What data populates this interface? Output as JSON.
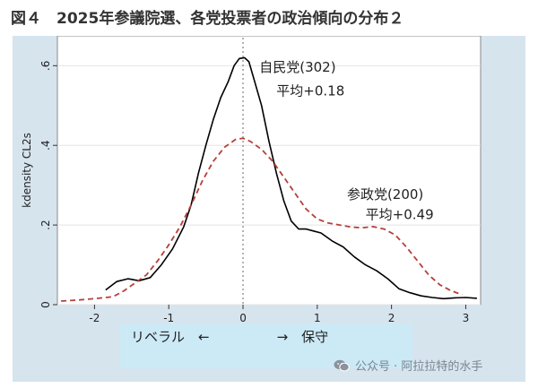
{
  "figure": {
    "title": "図４　2025年参議院選、各党投票者の政治傾向の分布２",
    "watermark": "公众号 · 阿拉拉特的水手",
    "watermark_icon": "wechat-icon",
    "axis_band": "リベラル　←　　　　　→　保守",
    "band_color": "#cce9f6",
    "panel_color": "#d6e4ee"
  },
  "chart_data": {
    "type": "line",
    "ylabel": "kdensity CL2s",
    "xlim": [
      -2.5,
      3.2
    ],
    "ylim": [
      0,
      0.63
    ],
    "xticks": [
      -2,
      -1,
      0,
      1,
      2,
      3
    ],
    "xtick_labels": [
      "-2",
      "-1",
      "0",
      "1",
      "2",
      "3"
    ],
    "yticks": [
      0,
      0.2,
      0.4,
      0.6
    ],
    "ytick_labels": [
      "0",
      ".2",
      ".4",
      ".6"
    ],
    "vline_x": 0,
    "series": [
      {
        "name": "自民党",
        "color": "#000000",
        "style": "solid",
        "points": [
          [
            -1.85,
            0.037
          ],
          [
            -1.7,
            0.058
          ],
          [
            -1.55,
            0.065
          ],
          [
            -1.4,
            0.06
          ],
          [
            -1.25,
            0.068
          ],
          [
            -1.1,
            0.1
          ],
          [
            -0.95,
            0.14
          ],
          [
            -0.8,
            0.195
          ],
          [
            -0.7,
            0.25
          ],
          [
            -0.6,
            0.33
          ],
          [
            -0.5,
            0.4
          ],
          [
            -0.4,
            0.465
          ],
          [
            -0.3,
            0.52
          ],
          [
            -0.2,
            0.56
          ],
          [
            -0.12,
            0.6
          ],
          [
            -0.05,
            0.618
          ],
          [
            0.02,
            0.62
          ],
          [
            0.08,
            0.61
          ],
          [
            0.15,
            0.565
          ],
          [
            0.25,
            0.5
          ],
          [
            0.35,
            0.41
          ],
          [
            0.45,
            0.33
          ],
          [
            0.55,
            0.26
          ],
          [
            0.65,
            0.21
          ],
          [
            0.75,
            0.19
          ],
          [
            0.85,
            0.19
          ],
          [
            0.95,
            0.185
          ],
          [
            1.05,
            0.18
          ],
          [
            1.2,
            0.16
          ],
          [
            1.35,
            0.145
          ],
          [
            1.5,
            0.12
          ],
          [
            1.65,
            0.1
          ],
          [
            1.8,
            0.085
          ],
          [
            1.95,
            0.065
          ],
          [
            2.1,
            0.04
          ],
          [
            2.25,
            0.03
          ],
          [
            2.4,
            0.022
          ],
          [
            2.55,
            0.018
          ],
          [
            2.7,
            0.015
          ],
          [
            2.85,
            0.017
          ],
          [
            3.0,
            0.018
          ],
          [
            3.15,
            0.016
          ]
        ]
      },
      {
        "name": "参政党",
        "color": "#b5403a",
        "style": "dashed",
        "points": [
          [
            -2.45,
            0.009
          ],
          [
            -2.2,
            0.012
          ],
          [
            -1.95,
            0.016
          ],
          [
            -1.75,
            0.02
          ],
          [
            -1.6,
            0.035
          ],
          [
            -1.45,
            0.055
          ],
          [
            -1.3,
            0.075
          ],
          [
            -1.15,
            0.11
          ],
          [
            -1.0,
            0.15
          ],
          [
            -0.85,
            0.195
          ],
          [
            -0.7,
            0.25
          ],
          [
            -0.55,
            0.31
          ],
          [
            -0.4,
            0.36
          ],
          [
            -0.25,
            0.395
          ],
          [
            -0.1,
            0.415
          ],
          [
            0.0,
            0.418
          ],
          [
            0.1,
            0.41
          ],
          [
            0.25,
            0.39
          ],
          [
            0.4,
            0.36
          ],
          [
            0.55,
            0.32
          ],
          [
            0.7,
            0.28
          ],
          [
            0.85,
            0.24
          ],
          [
            1.0,
            0.215
          ],
          [
            1.15,
            0.205
          ],
          [
            1.3,
            0.2
          ],
          [
            1.45,
            0.195
          ],
          [
            1.6,
            0.193
          ],
          [
            1.75,
            0.196
          ],
          [
            1.9,
            0.19
          ],
          [
            2.05,
            0.175
          ],
          [
            2.2,
            0.145
          ],
          [
            2.35,
            0.11
          ],
          [
            2.5,
            0.075
          ],
          [
            2.65,
            0.05
          ],
          [
            2.8,
            0.035
          ],
          [
            2.95,
            0.025
          ]
        ]
      }
    ],
    "annotations": [
      {
        "id": "ldp-name",
        "text": "自民党(302)",
        "x": 0.22,
        "y": 0.585
      },
      {
        "id": "ldp-mean",
        "text": "平均+0.18",
        "x": 0.45,
        "y": 0.525
      },
      {
        "id": "san-name",
        "text": "参政党(200)",
        "x": 1.4,
        "y": 0.265
      },
      {
        "id": "san-mean",
        "text": "平均+0.49",
        "x": 1.65,
        "y": 0.215
      }
    ]
  }
}
